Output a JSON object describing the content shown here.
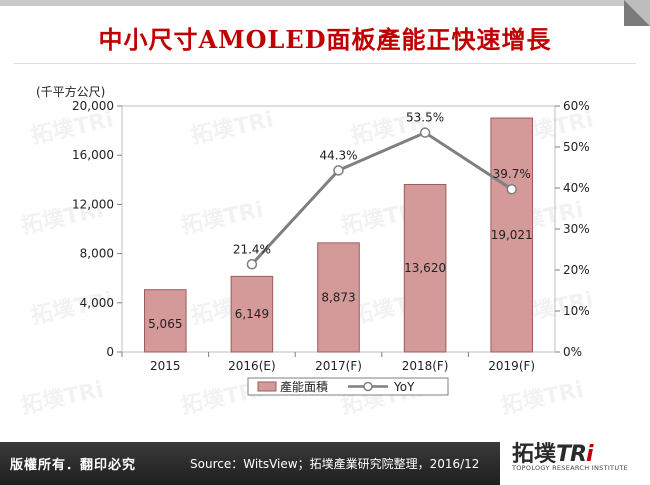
{
  "header": {
    "title": "中小尺寸AMOLED面板產能正快速增長"
  },
  "chart_data": {
    "type": "bar",
    "categories": [
      "2015",
      "2016(E)",
      "2017(F)",
      "2018(F)",
      "2019(F)"
    ],
    "series": [
      {
        "name": "產能面積",
        "type": "bar",
        "axis": "left",
        "values": [
          5065,
          6149,
          8873,
          13620,
          19021
        ],
        "labels": [
          "5,065",
          "6,149",
          "8,873",
          "13,620",
          "19,021"
        ],
        "color": "#d49a9a",
        "edge": "#9c5a5a"
      },
      {
        "name": "YoY",
        "type": "line",
        "axis": "right",
        "values": [
          null,
          21.4,
          44.3,
          53.5,
          39.7
        ],
        "labels": [
          "",
          "21.4%",
          "44.3%",
          "53.5%",
          "39.7%"
        ],
        "color": "#7f7f7f"
      }
    ],
    "ylabel": "(千平方公尺)",
    "ylim": [
      0,
      20000
    ],
    "yticks": [
      "0",
      "4,000",
      "8,000",
      "12,000",
      "16,000",
      "20,000"
    ],
    "y2lim": [
      0,
      60
    ],
    "y2ticks": [
      "0%",
      "10%",
      "20%",
      "30%",
      "40%",
      "50%",
      "60%"
    ],
    "grid": false,
    "legend": "bottom"
  },
  "watermark": {
    "brand": "拓墣TRi",
    "subtitle": "TOPOLOGY RESEARCH INSTITUTE"
  },
  "footer": {
    "rights": "版權所有．翻印必究",
    "source": "Source：WitsView；拓墣產業研究院整理，2016/12"
  },
  "logo": {
    "cn": "拓墣",
    "tr": "TR",
    "i": "i",
    "subtitle": "TOPOLOGY RESEARCH INSTITUTE"
  }
}
